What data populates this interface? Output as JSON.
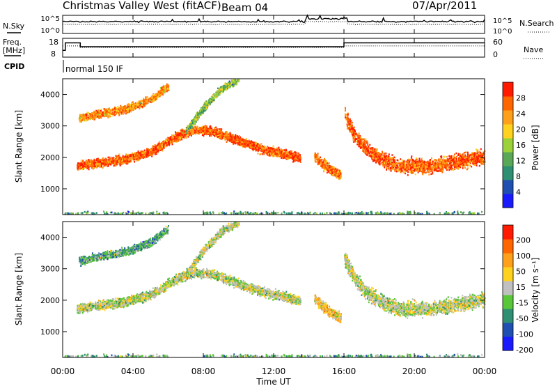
{
  "header": {
    "station": "Christmas Valley West (fitACF)",
    "beam": "Beam 04",
    "date": "07/Apr/2011"
  },
  "chart_data": [
    {
      "type": "line",
      "panel": "noise",
      "left_label": "N.Sky",
      "right_label": "N.Search",
      "left_ticks": [
        "10^5",
        "10^0"
      ],
      "right_ticks": [
        "10^5",
        "10^0"
      ]
    },
    {
      "type": "line",
      "panel": "frequency",
      "left_label": [
        "Freq.",
        "[MHz]"
      ],
      "right_label": "Nave",
      "left_ticks": [
        "18",
        "8"
      ],
      "right_ticks": [
        "60",
        "0"
      ],
      "freq_series": {
        "x": [
          0,
          0.15,
          0.15,
          1.0,
          1.0,
          16.0,
          16.0,
          24.0
        ],
        "y": [
          12.4,
          12.4,
          17.3,
          17.3,
          14.8,
          14.8,
          17.3,
          17.3
        ]
      },
      "nave_series": {
        "x": [
          0,
          1.0,
          1.0,
          16.0,
          16.0,
          24.0
        ],
        "y": [
          44,
          44,
          38,
          38,
          44,
          44
        ]
      }
    },
    {
      "type": "table",
      "panel": "cpid",
      "label": "CPID",
      "value": "normal 150 IF"
    },
    {
      "type": "heatmap",
      "panel": "power",
      "ylabel": "Slant Range [km]",
      "yticks": [
        "1000",
        "2000",
        "3000",
        "4000"
      ],
      "ylim": [
        180,
        4500
      ],
      "colorbar_label": "Power [dB]",
      "colorbar_ticks": [
        "4",
        "8",
        "12",
        "16",
        "20",
        "24",
        "28"
      ],
      "colorbar_range": [
        0,
        32
      ],
      "colors": [
        "#1a1aff",
        "#1f4fb0",
        "#2e8f72",
        "#5aa857",
        "#9bd23a",
        "#ffd21f",
        "#ffa01a",
        "#ff6600",
        "#ff1a00"
      ],
      "bands": [
        {
          "x": [
            0.9,
            2.0,
            3.5,
            5.0,
            6.0
          ],
          "y": [
            3250,
            3400,
            3550,
            3850,
            4300
          ],
          "width": 170,
          "level": 0.75
        },
        {
          "x": [
            0.8,
            2.0,
            3.5,
            5.0,
            6.5,
            7.5,
            8.5,
            10.0,
            11.5,
            12.5,
            13.5
          ],
          "y": [
            1750,
            1850,
            1950,
            2200,
            2700,
            2900,
            2850,
            2550,
            2250,
            2150,
            2000
          ],
          "width": 200,
          "level": 0.85
        },
        {
          "x": [
            7.0,
            8.0,
            9.0,
            10.0
          ],
          "y": [
            2850,
            3600,
            4200,
            4500
          ],
          "width": 170,
          "level": 0.45
        },
        {
          "x": [
            14.3,
            14.8,
            15.3,
            15.8
          ],
          "y": [
            2050,
            1800,
            1600,
            1450
          ],
          "width": 230,
          "level": 0.8
        },
        {
          "x": [
            16.0,
            16.5,
            17.2,
            18.0,
            19.0,
            20.0,
            21.0,
            22.0,
            23.0,
            24.0
          ],
          "y": [
            3400,
            2800,
            2300,
            2000,
            1750,
            1750,
            1750,
            1850,
            1950,
            2050
          ],
          "width": 320,
          "level": 0.85
        },
        {
          "x": [
            0.0,
            24.0
          ],
          "y": [
            200,
            200
          ],
          "width": 120,
          "level": 0.35
        }
      ]
    },
    {
      "type": "heatmap",
      "panel": "velocity",
      "ylabel": "Slant Range [km]",
      "yticks": [
        "1000",
        "2000",
        "3000",
        "4000"
      ],
      "ylim": [
        180,
        4500
      ],
      "colorbar_label": "Velocity [m s⁻¹]",
      "colorbar_ticks": [
        "200",
        "100",
        "50",
        "15",
        "-15",
        "-50",
        "-100",
        "-200"
      ],
      "colorbar_range": [
        -250,
        250
      ],
      "colors": [
        "#1a1aff",
        "#1f4fb0",
        "#2e8f72",
        "#5ac63a",
        "#c0c0c0",
        "#ffd21f",
        "#ffa01a",
        "#ff6600",
        "#ff1a00"
      ],
      "bands": [
        {
          "x": [
            0.9,
            2.0,
            3.5,
            5.0,
            6.0
          ],
          "y": [
            3250,
            3400,
            3550,
            3850,
            4300
          ],
          "width": 170,
          "level": 0.35
        },
        {
          "x": [
            0.8,
            2.0,
            3.5,
            5.0,
            6.5,
            7.5,
            8.5,
            10.0,
            11.5,
            12.5,
            13.5
          ],
          "y": [
            1750,
            1850,
            1950,
            2200,
            2700,
            2900,
            2850,
            2550,
            2250,
            2150,
            2000
          ],
          "width": 200,
          "level": 0.5
        },
        {
          "x": [
            7.0,
            8.0,
            9.0,
            10.0
          ],
          "y": [
            2850,
            3600,
            4200,
            4500
          ],
          "width": 170,
          "level": 0.5
        },
        {
          "x": [
            14.3,
            14.8,
            15.3,
            15.8
          ],
          "y": [
            2050,
            1800,
            1600,
            1450
          ],
          "width": 230,
          "level": 0.62
        },
        {
          "x": [
            16.0,
            16.5,
            17.2,
            18.0,
            19.0,
            20.0,
            21.0,
            22.0,
            23.0,
            24.0
          ],
          "y": [
            3400,
            2800,
            2300,
            2000,
            1750,
            1750,
            1750,
            1850,
            1950,
            2050
          ],
          "width": 320,
          "level": 0.5
        },
        {
          "x": [
            0.0,
            24.0
          ],
          "y": [
            200,
            200
          ],
          "width": 120,
          "level": 0.38
        }
      ]
    }
  ],
  "xaxis": {
    "label": "Time UT",
    "ticks": [
      "00:00",
      "04:00",
      "08:00",
      "12:00",
      "16:00",
      "20:00",
      "00:00"
    ],
    "range": [
      0,
      24
    ]
  }
}
